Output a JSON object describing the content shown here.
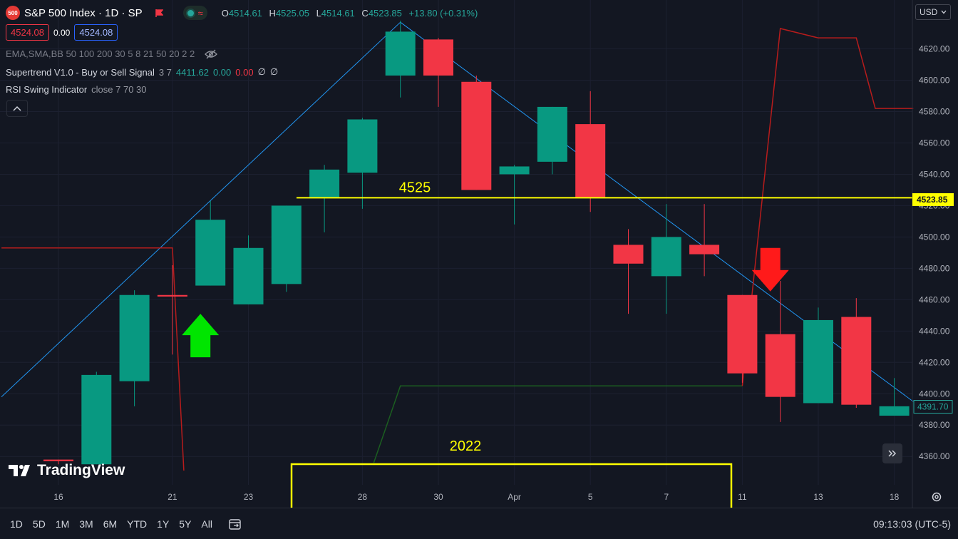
{
  "header": {
    "symbol_badge": "500",
    "symbol_title": "S&P 500 Index · 1D · SP",
    "ohlc": [
      {
        "k": "O",
        "v": "4514.61"
      },
      {
        "k": "H",
        "v": "4525.05"
      },
      {
        "k": "L",
        "v": "4514.61"
      },
      {
        "k": "C",
        "v": "4523.85"
      }
    ],
    "change": "+13.80 (+0.31%)",
    "sell_price": "4524.08",
    "spread": "0.00",
    "buy_price": "4524.08",
    "live_wave": "≈"
  },
  "indicators": {
    "ma_line": "EMA,SMA,BB 50 100 200 30 5 8 21 50 20 2 2",
    "supertrend_name": "Supertrend V1.0 - Buy or Sell Signal",
    "supertrend_params": "3 7",
    "supertrend_v1": "4411.62",
    "supertrend_v2": "0.00",
    "supertrend_v3": "0.00",
    "supertrend_v4": "∅",
    "supertrend_v5": "∅",
    "rsi_name": "RSI Swing Indicator",
    "rsi_params": "close 7 70 30"
  },
  "currency": "USD",
  "brand": "TradingView",
  "bottom_bar": {
    "ranges": [
      "1D",
      "5D",
      "1M",
      "3M",
      "6M",
      "YTD",
      "1Y",
      "5Y",
      "All"
    ],
    "clock": "09:13:03 (UTC-5)"
  },
  "colors": {
    "up": "#089981",
    "down": "#f23645",
    "background": "#131722",
    "annotation": "#ffff00",
    "trendline": "#2196f3",
    "supertrend_down": "#b71c1c",
    "supertrend_up": "#1b5e20"
  },
  "chart_data": {
    "type": "candlestick",
    "ylim": [
      4351,
      4648
    ],
    "y_ticks": [
      4360,
      4380,
      4400,
      4420,
      4440,
      4460,
      4480,
      4500,
      4520,
      4540,
      4560,
      4580,
      4600,
      4620
    ],
    "y_tick_labels": [
      "4360.00",
      "4380.00",
      "4400.00",
      "4420.00",
      "4440.00",
      "4460.00",
      "4480.00",
      "4500.00",
      "4520.00",
      "4540.00",
      "4560.00",
      "4580.00",
      "4600.00",
      "4620.00"
    ],
    "x_labels": [
      {
        "i": 0,
        "label": "16"
      },
      {
        "i": 3,
        "label": "21"
      },
      {
        "i": 5,
        "label": "23"
      },
      {
        "i": 8,
        "label": "28"
      },
      {
        "i": 10,
        "label": "30"
      },
      {
        "i": 12,
        "label": "Apr"
      },
      {
        "i": 14,
        "label": "5"
      },
      {
        "i": 16,
        "label": "7"
      },
      {
        "i": 18,
        "label": "11"
      },
      {
        "i": 20,
        "label": "13"
      },
      {
        "i": 22,
        "label": "18"
      }
    ],
    "candles": [
      {
        "i": 0,
        "o": 4358,
        "h": 4358,
        "l": 4355,
        "c": 4357
      },
      {
        "i": 1,
        "o": 4355,
        "h": 4414,
        "l": 4355,
        "c": 4412
      },
      {
        "i": 2,
        "o": 4408,
        "h": 4466,
        "l": 4392,
        "c": 4463
      },
      {
        "i": 3,
        "o": 4463,
        "h": 4482,
        "l": 4425,
        "c": 4462
      },
      {
        "i": 4,
        "o": 4469,
        "h": 4523,
        "l": 4469,
        "c": 4511
      },
      {
        "i": 5,
        "o": 4457,
        "h": 4501,
        "l": 4457,
        "c": 4493
      },
      {
        "i": 6,
        "o": 4470,
        "h": 4520,
        "l": 4465,
        "c": 4520
      },
      {
        "i": 7,
        "o": 4525,
        "h": 4546,
        "l": 4503,
        "c": 4543
      },
      {
        "i": 8,
        "o": 4541,
        "h": 4576,
        "l": 4518,
        "c": 4575
      },
      {
        "i": 9,
        "o": 4603,
        "h": 4638,
        "l": 4589,
        "c": 4631
      },
      {
        "i": 10,
        "o": 4626,
        "h": 4627,
        "l": 4583,
        "c": 4603
      },
      {
        "i": 11,
        "o": 4599,
        "h": 4603,
        "l": 4530,
        "c": 4530
      },
      {
        "i": 12,
        "o": 4540,
        "h": 4546,
        "l": 4508,
        "c": 4545
      },
      {
        "i": 13,
        "o": 4548,
        "h": 4583,
        "l": 4540,
        "c": 4583
      },
      {
        "i": 14,
        "o": 4572,
        "h": 4593,
        "l": 4516,
        "c": 4525
      },
      {
        "i": 15,
        "o": 4495,
        "h": 4505,
        "l": 4451,
        "c": 4483
      },
      {
        "i": 16,
        "o": 4475,
        "h": 4521,
        "l": 4451,
        "c": 4500
      },
      {
        "i": 17,
        "o": 4495,
        "h": 4521,
        "l": 4475,
        "c": 4489
      },
      {
        "i": 18,
        "o": 4463,
        "h": 4463,
        "l": 4407,
        "c": 4413
      },
      {
        "i": 19,
        "o": 4438,
        "h": 4472,
        "l": 4382,
        "c": 4398
      },
      {
        "i": 20,
        "o": 4394,
        "h": 4455,
        "l": 4394,
        "c": 4447
      },
      {
        "i": 21,
        "o": 4449,
        "h": 4461,
        "l": 4391,
        "c": 4393
      },
      {
        "i": 22,
        "o": 4386,
        "h": 4410,
        "l": 4386,
        "c": 4392
      }
    ],
    "price_labels": [
      {
        "value": 4523.85,
        "label": "4523.85",
        "style": "yellow"
      },
      {
        "value": 4391.7,
        "label": "4391.70",
        "style": "teal"
      }
    ],
    "annotations": {
      "level_line": {
        "value": 4525,
        "label": "4525"
      },
      "year_label": "2022"
    },
    "supertrend_lines": [
      {
        "color": "#b71c1c",
        "points": [
          [
            -1.5,
            4493
          ],
          [
            3.0,
            4493
          ],
          [
            3.3,
            4351
          ]
        ]
      },
      {
        "color": "#1b5e20",
        "points": [
          [
            8.3,
            4356
          ],
          [
            9.0,
            4405
          ],
          [
            18.0,
            4405
          ]
        ]
      },
      {
        "color": "#b71c1c",
        "points": [
          [
            18.0,
            4405
          ],
          [
            19.0,
            4633
          ],
          [
            20.0,
            4627
          ],
          [
            21.0,
            4627
          ],
          [
            21.5,
            4582
          ],
          [
            22.5,
            4582
          ]
        ]
      }
    ],
    "trendlines": [
      {
        "color": "#2196f3",
        "points": [
          [
            -1.5,
            4398
          ],
          [
            9.0,
            4637
          ]
        ]
      },
      {
        "color": "#2196f3",
        "points": [
          [
            9.0,
            4637
          ],
          [
            22.5,
            4395
          ]
        ]
      }
    ],
    "signals": [
      {
        "type": "buy",
        "i": 4,
        "value": 4451
      },
      {
        "type": "sell",
        "i": 19,
        "value": 4493
      }
    ]
  }
}
